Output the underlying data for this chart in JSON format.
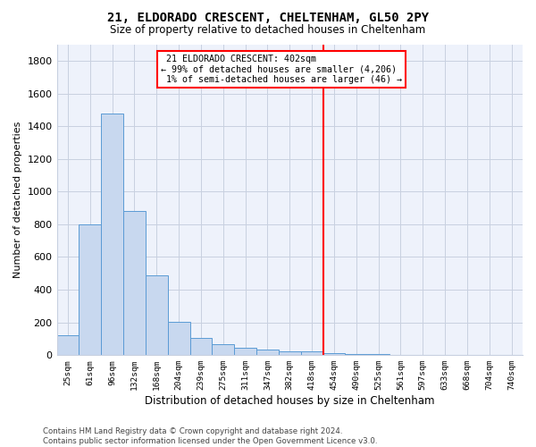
{
  "title": "21, ELDORADO CRESCENT, CHELTENHAM, GL50 2PY",
  "subtitle": "Size of property relative to detached houses in Cheltenham",
  "xlabel": "Distribution of detached houses by size in Cheltenham",
  "ylabel": "Number of detached properties",
  "bar_labels": [
    "25sqm",
    "61sqm",
    "96sqm",
    "132sqm",
    "168sqm",
    "204sqm",
    "239sqm",
    "275sqm",
    "311sqm",
    "347sqm",
    "382sqm",
    "418sqm",
    "454sqm",
    "490sqm",
    "525sqm",
    "561sqm",
    "597sqm",
    "633sqm",
    "668sqm",
    "704sqm",
    "740sqm"
  ],
  "bar_values": [
    120,
    800,
    1480,
    880,
    490,
    205,
    105,
    65,
    45,
    32,
    25,
    22,
    10,
    5,
    5,
    3,
    2,
    2,
    2,
    2,
    2
  ],
  "bar_color": "#c8d8ef",
  "bar_edge_color": "#5b9bd5",
  "ylim": [
    0,
    1900
  ],
  "yticks": [
    0,
    200,
    400,
    600,
    800,
    1000,
    1200,
    1400,
    1600,
    1800
  ],
  "property_label": "21 ELDORADO CRESCENT: 402sqm",
  "pct_smaller": "99% of detached houses are smaller (4,206)",
  "pct_larger": "1% of semi-detached houses are larger (46)",
  "vline_x_index": 11.5,
  "bg_color": "#eef2fb",
  "grid_color": "#c8d0e0",
  "footer": "Contains HM Land Registry data © Crown copyright and database right 2024.\nContains public sector information licensed under the Open Government Licence v3.0."
}
